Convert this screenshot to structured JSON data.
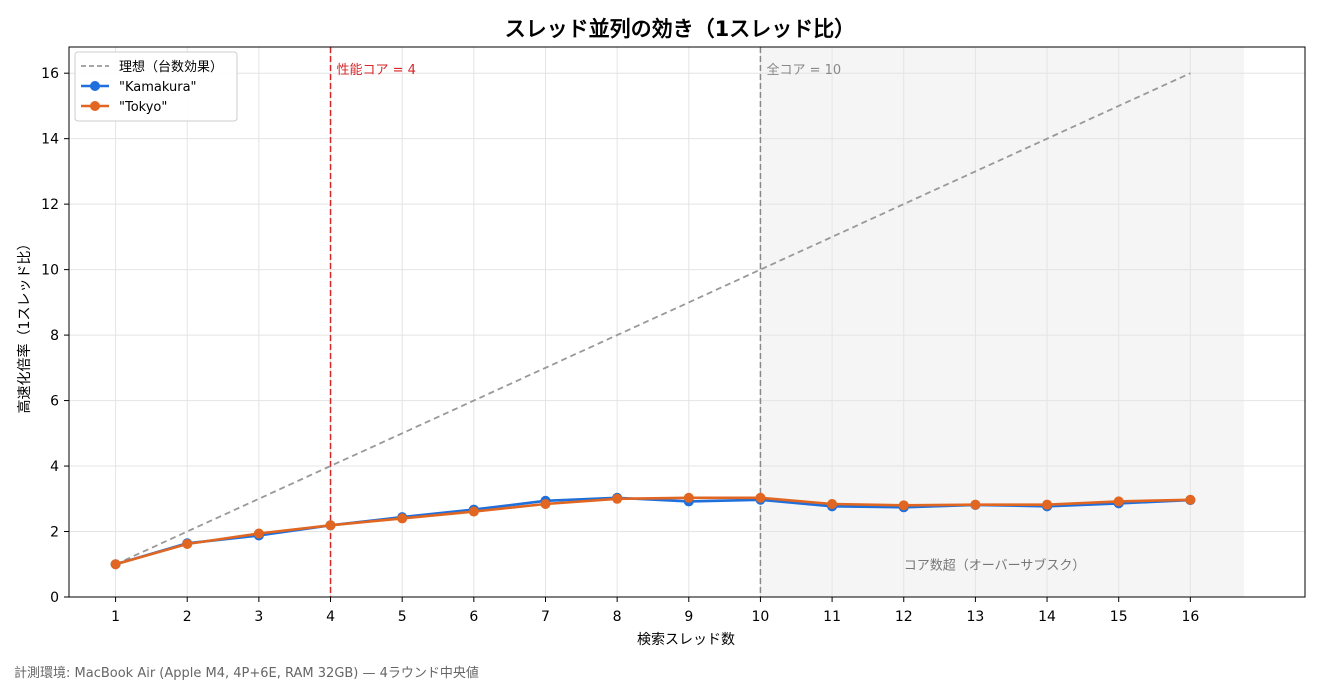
{
  "chart_data": {
    "type": "line",
    "title": "スレッド並列の効き（1スレッド比）",
    "xlabel": "検索スレッド数",
    "ylabel": "高速化倍率（1スレッド比）",
    "x": [
      1,
      2,
      3,
      4,
      5,
      6,
      7,
      8,
      9,
      10,
      11,
      12,
      13,
      14,
      15,
      16
    ],
    "xlim": [
      0.35,
      17.6
    ],
    "ylim": [
      0,
      16.8
    ],
    "x_ticks": [
      "1",
      "2",
      "3",
      "4",
      "5",
      "6",
      "7",
      "8",
      "9",
      "10",
      "11",
      "12",
      "13",
      "14",
      "15",
      "16"
    ],
    "y_ticks": [
      "0",
      "2",
      "4",
      "6",
      "8",
      "10",
      "12",
      "14",
      "16"
    ],
    "grid": true,
    "legend_position": "top-left",
    "series": [
      {
        "name": "理想（台数効果）",
        "style": "dashed",
        "color": "#999999",
        "values": [
          1,
          2,
          3,
          4,
          5,
          6,
          7,
          8,
          9,
          10,
          11,
          12,
          13,
          14,
          15,
          16
        ]
      },
      {
        "name": "\"Kamakura\"",
        "style": "solid-marker",
        "color": "#1f6fdc",
        "values": [
          1.0,
          1.64,
          1.88,
          2.19,
          2.44,
          2.67,
          2.94,
          3.03,
          2.92,
          2.97,
          2.77,
          2.74,
          2.81,
          2.77,
          2.86,
          2.96
        ]
      },
      {
        "name": "\"Tokyo\"",
        "style": "solid-marker",
        "color": "#e06621",
        "values": [
          1.0,
          1.62,
          1.94,
          2.19,
          2.4,
          2.61,
          2.84,
          3.0,
          3.03,
          3.03,
          2.84,
          2.8,
          2.82,
          2.82,
          2.92,
          2.97
        ]
      }
    ],
    "vlines": [
      {
        "x": 4,
        "label": "性能コア = 4",
        "color": "#d62728"
      },
      {
        "x": 10,
        "label": "全コア = 10",
        "color": "#888888"
      }
    ],
    "shaded_region": {
      "x_from": 10,
      "x_to": 16.75,
      "label": "コア数超（オーバーサブスク）",
      "color": "#f5f5f5"
    }
  },
  "footer": "計測環境: MacBook Air (Apple M4, 4P+6E, RAM 32GB) — 4ラウンド中央値"
}
